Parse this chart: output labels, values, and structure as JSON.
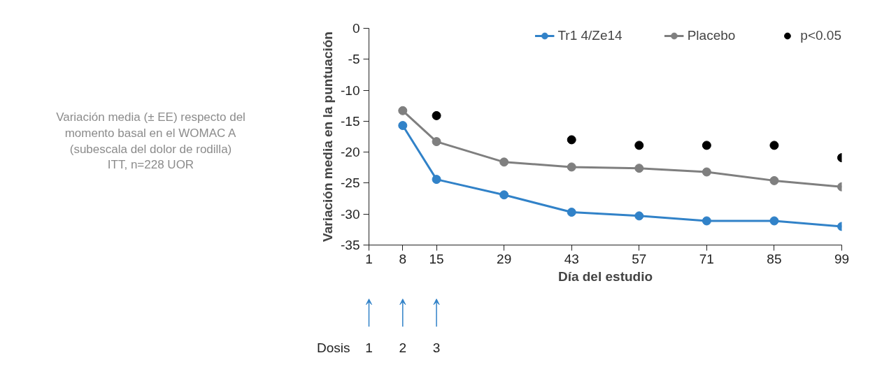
{
  "chart_data": {
    "type": "line",
    "xlabel": "Día del estudio",
    "ylabel": "Variación media en la puntuación",
    "x": [
      8,
      15,
      29,
      43,
      57,
      71,
      85,
      99
    ],
    "series": [
      {
        "name": "Tr1 4/Ze14",
        "color": "#3182c8",
        "values": [
          -15.7,
          -24.4,
          -26.9,
          -29.7,
          -30.3,
          -31.1,
          -31.1,
          -32.0
        ]
      },
      {
        "name": "Placebo",
        "color": "#7f7f7f",
        "values": [
          -13.3,
          -18.3,
          -21.6,
          -22.4,
          -22.6,
          -23.2,
          -24.6,
          -25.6
        ]
      },
      {
        "name": "p<0.05",
        "type": "scatter",
        "color": "#000000",
        "x": [
          15,
          43,
          57,
          71,
          85,
          99
        ],
        "values": [
          -14.1,
          -18.0,
          -18.9,
          -18.9,
          -18.9,
          -20.9
        ]
      }
    ],
    "xlim": [
      1,
      99
    ],
    "xticks": [
      1,
      8,
      15,
      29,
      43,
      57,
      71,
      85,
      99
    ],
    "ylim": [
      -35,
      0
    ],
    "yticks": [
      0,
      -5,
      -10,
      -15,
      -20,
      -25,
      -30,
      -35
    ],
    "grid": false,
    "legend": "top right",
    "marker": "circle",
    "line_style": "solid",
    "annotations": [
      "Variación media (± EE) respecto del\nmomento basal en el WOMAC A\n(subescala del dolor de rodilla)\nITT, n=228 UOR",
      "Dosis",
      "1",
      "2",
      "3"
    ]
  }
}
